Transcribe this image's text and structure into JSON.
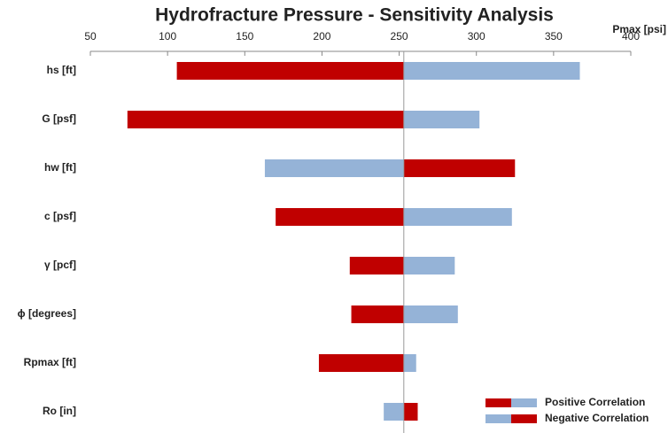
{
  "chart_data": {
    "type": "tornado",
    "title": "Hydrofracture Pressure - Sensitivity Analysis",
    "x_label": "Pmax [psi]",
    "categories": [
      "hs [ft]",
      "G [psf]",
      "hw [ft]",
      "c [psf]",
      "γ [pcf]",
      "ϕ [degrees]",
      "Rpmax [ft]",
      "Ro [in]"
    ],
    "base": 253,
    "series": [
      {
        "name": "Positive Correlation",
        "colors": [
          "#c00000",
          "#95b3d7"
        ],
        "low": [
          106,
          74,
          null,
          170,
          218,
          219,
          198,
          null
        ],
        "high": [
          367,
          302,
          null,
          323,
          286,
          288,
          261,
          null
        ]
      },
      {
        "name": "Negative Correlation",
        "colors": [
          "#95b3d7",
          "#c00000"
        ],
        "low": [
          null,
          null,
          163,
          null,
          null,
          null,
          null,
          240
        ],
        "high": [
          null,
          null,
          325,
          null,
          null,
          null,
          null,
          262
        ]
      }
    ],
    "xlim": [
      50,
      400
    ],
    "xticks": [
      50,
      100,
      150,
      200,
      250,
      300,
      350,
      400
    ],
    "legend": "bottom-right"
  }
}
